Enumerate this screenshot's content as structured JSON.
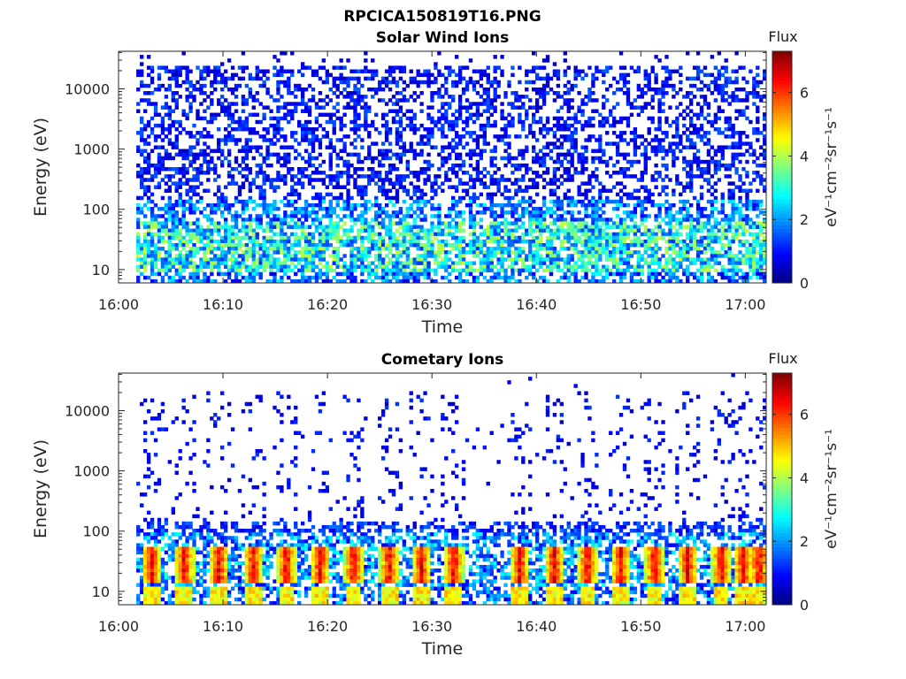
{
  "figure": {
    "title": "RPCICA150819T16.PNG"
  },
  "colors": {
    "axis": "#262626",
    "background": "#ffffff",
    "colormap": "jet"
  },
  "chart_data": [
    {
      "type": "heatmap",
      "title": "Solar Wind Ions",
      "xlabel": "Time",
      "ylabel": "Energy (eV)",
      "x_ticks": [
        "16:00",
        "16:10",
        "16:20",
        "16:30",
        "16:40",
        "16:50",
        "17:00"
      ],
      "x_range_minutes": [
        0,
        62
      ],
      "y_ticks": [
        "10",
        "100",
        "1000",
        "10000"
      ],
      "y_scale": "log",
      "y_range": [
        6,
        42000
      ],
      "colorbar": {
        "label": "Flux",
        "units": "eV⁻¹cm⁻²sr⁻¹s⁻¹",
        "ticks": [
          "0",
          "2",
          "4",
          "6"
        ],
        "range": [
          0,
          7.3
        ],
        "colormap": "jet"
      },
      "data_start_minute": 1.7,
      "data_end_minute": 62.0,
      "profile": "solar_wind",
      "description_of_fill": "sparse dark-blue pixels (flux ~0.5-1.5) from ~10 eV to ~20000 eV; denser cyan/green (2-4) below ~100 eV"
    },
    {
      "type": "heatmap",
      "title": "Cometary Ions",
      "xlabel": "Time",
      "ylabel": "Energy (eV)",
      "x_ticks": [
        "16:00",
        "16:10",
        "16:20",
        "16:30",
        "16:40",
        "16:50",
        "17:00"
      ],
      "x_range_minutes": [
        0,
        62
      ],
      "y_ticks": [
        "10",
        "100",
        "1000",
        "10000"
      ],
      "y_scale": "log",
      "y_range": [
        6,
        42000
      ],
      "colorbar": {
        "label": "Flux",
        "units": "eV⁻¹cm⁻²sr⁻¹s⁻¹",
        "ticks": [
          "0",
          "2",
          "4",
          "6"
        ],
        "range": [
          0,
          7.3
        ],
        "colormap": "jet"
      },
      "data_start_minute": 1.7,
      "data_end_minute": 62.0,
      "profile": "cometary",
      "burst_minutes": [
        3.2,
        6.3,
        9.6,
        12.9,
        16.1,
        19.3,
        22.5,
        25.9,
        29.0,
        32.1,
        38.4,
        41.7,
        44.9,
        48.1,
        51.3,
        54.5,
        57.7,
        59.8,
        61.3
      ],
      "description_of_fill": "periodic red/orange bursts (flux ~5-7) around 15-50 eV; sparse dark-blue pixels up to ~10000 eV; blue band ~100-120 eV"
    }
  ]
}
